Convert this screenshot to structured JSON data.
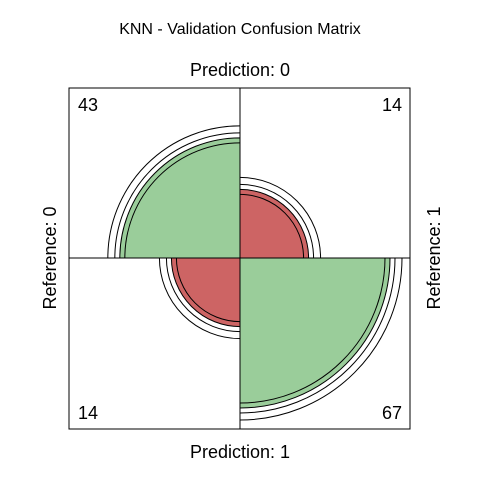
{
  "chart_data": {
    "type": "fourfold",
    "title": "KNN - Validation Confusion Matrix",
    "top_label": "Prediction: 0",
    "bottom_label": "Prediction: 1",
    "left_label": "Reference: 0",
    "right_label": "Reference: 1",
    "cells": [
      {
        "position": "top-left",
        "value": 43,
        "label": "43",
        "color": "#9ACD9A"
      },
      {
        "position": "top-right",
        "value": 14,
        "label": "14",
        "color": "#CD6464"
      },
      {
        "position": "bottom-left",
        "value": 14,
        "label": "14",
        "color": "#CD6464"
      },
      {
        "position": "bottom-right",
        "value": 67,
        "label": "67",
        "color": "#9ACD9A"
      }
    ]
  }
}
